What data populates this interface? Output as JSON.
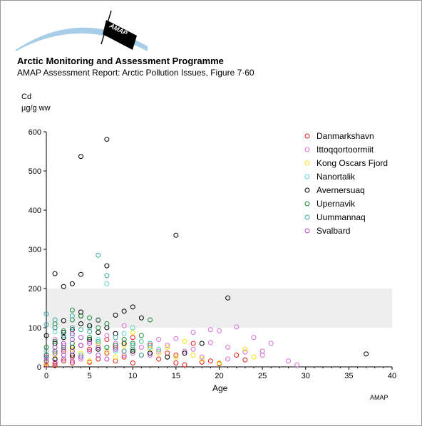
{
  "header": {
    "title": "Arctic Monitoring and Assessment Programme",
    "subtitle": "AMAP Assessment Report: Arctic Pollution Issues, Figure 7·60",
    "logo_text": "AMAP"
  },
  "credit": "AMAP",
  "chart_data": {
    "type": "scatter",
    "title": "",
    "ylabel_line1": "Cd",
    "ylabel_line2": "µg/g ww",
    "xlabel": "Age",
    "xlim": [
      0,
      40
    ],
    "ylim": [
      0,
      600
    ],
    "xticks": [
      "0",
      "5",
      "10",
      "15",
      "20",
      "25",
      "30",
      "35",
      "40"
    ],
    "yticks": [
      "0",
      "100",
      "200",
      "300",
      "400",
      "500",
      "600"
    ],
    "grid": false,
    "legend_position": "top-right",
    "band": {
      "y_from": 100,
      "y_to": 200,
      "color": "#eeeeee"
    },
    "series": [
      {
        "name": "Danmarkshavn",
        "color": "#e8201e",
        "points": [
          [
            0,
            5
          ],
          [
            0,
            12
          ],
          [
            1,
            3
          ],
          [
            1,
            8
          ],
          [
            1,
            20
          ],
          [
            2,
            15
          ],
          [
            2,
            40
          ],
          [
            3,
            10
          ],
          [
            3,
            25
          ],
          [
            4,
            30
          ],
          [
            4,
            55
          ],
          [
            5,
            12
          ],
          [
            5,
            45
          ],
          [
            6,
            20
          ],
          [
            6,
            60
          ],
          [
            7,
            35
          ],
          [
            7,
            70
          ],
          [
            8,
            15
          ],
          [
            8,
            50
          ],
          [
            9,
            40
          ],
          [
            9,
            25
          ],
          [
            10,
            10
          ],
          [
            10,
            75
          ],
          [
            11,
            30
          ],
          [
            12,
            55
          ],
          [
            13,
            20
          ],
          [
            14,
            35
          ],
          [
            15,
            10
          ],
          [
            15,
            30
          ],
          [
            16,
            5
          ],
          [
            17,
            60
          ],
          [
            18,
            12
          ],
          [
            19,
            15
          ],
          [
            20,
            8
          ],
          [
            22,
            30
          ],
          [
            23,
            18
          ]
        ]
      },
      {
        "name": "Ittoqqortoormiit",
        "color": "#d86fd8",
        "points": [
          [
            0,
            30
          ],
          [
            1,
            70
          ],
          [
            2,
            55
          ],
          [
            3,
            40
          ],
          [
            4,
            20
          ],
          [
            5,
            65
          ],
          [
            6,
            118
          ],
          [
            7,
            80
          ],
          [
            8,
            60
          ],
          [
            9,
            105
          ],
          [
            10,
            35
          ],
          [
            11,
            50
          ],
          [
            12,
            30
          ],
          [
            13,
            70
          ],
          [
            14,
            55
          ],
          [
            15,
            72
          ],
          [
            16,
            40
          ],
          [
            17,
            88
          ],
          [
            18,
            25
          ],
          [
            19,
            62
          ],
          [
            19,
            95
          ],
          [
            20,
            92
          ],
          [
            21,
            50
          ],
          [
            22,
            102
          ],
          [
            23,
            38
          ],
          [
            24,
            75
          ],
          [
            25,
            30
          ],
          [
            25,
            40
          ],
          [
            26,
            60
          ],
          [
            28,
            15
          ],
          [
            29,
            5
          ],
          [
            9,
            30
          ],
          [
            13,
            40
          ],
          [
            17,
            45
          ],
          [
            21,
            20
          ]
        ]
      },
      {
        "name": "Kong Oscars Fjord",
        "color": "#f2e318",
        "points": [
          [
            0,
            10
          ],
          [
            1,
            30
          ],
          [
            2,
            20
          ],
          [
            3,
            45
          ],
          [
            4,
            35
          ],
          [
            5,
            15
          ],
          [
            6,
            60
          ],
          [
            7,
            40
          ],
          [
            8,
            25
          ],
          [
            9,
            55
          ],
          [
            10,
            88
          ],
          [
            11,
            65
          ],
          [
            12,
            45
          ],
          [
            13,
            35
          ],
          [
            14,
            50
          ],
          [
            15,
            25
          ],
          [
            16,
            65
          ],
          [
            17,
            30
          ],
          [
            18,
            20
          ],
          [
            20,
            10
          ],
          [
            23,
            45
          ],
          [
            24,
            25
          ]
        ]
      },
      {
        "name": "Nanortalik",
        "color": "#5fd3c8",
        "points": [
          [
            0,
            20
          ],
          [
            0,
            40
          ],
          [
            1,
            50
          ],
          [
            1,
            90
          ],
          [
            2,
            60
          ],
          [
            3,
            80
          ],
          [
            4,
            30
          ],
          [
            5,
            100
          ],
          [
            6,
            70
          ],
          [
            7,
            212
          ],
          [
            7,
            50
          ],
          [
            8,
            40
          ],
          [
            9,
            85
          ],
          [
            10,
            100
          ],
          [
            11,
            65
          ],
          [
            12,
            50
          ],
          [
            13,
            45
          ]
        ]
      },
      {
        "name": "Avernersuaq",
        "color": "#000000",
        "points": [
          [
            1,
            238
          ],
          [
            2,
            205
          ],
          [
            3,
            212
          ],
          [
            4,
            236
          ],
          [
            4,
            537
          ],
          [
            7,
            581
          ],
          [
            7,
            258
          ],
          [
            15,
            336
          ],
          [
            21,
            176
          ],
          [
            8,
            132
          ],
          [
            9,
            142
          ],
          [
            10,
            153
          ],
          [
            11,
            125
          ],
          [
            4,
            140
          ],
          [
            4,
            130
          ],
          [
            5,
            105
          ],
          [
            6,
            88
          ],
          [
            0,
            80
          ],
          [
            1,
            100
          ],
          [
            1,
            60
          ],
          [
            2,
            75
          ],
          [
            2,
            118
          ],
          [
            3,
            95
          ],
          [
            3,
            50
          ],
          [
            4,
            110
          ],
          [
            5,
            70
          ],
          [
            6,
            45
          ],
          [
            7,
            100
          ],
          [
            8,
            85
          ],
          [
            9,
            60
          ],
          [
            10,
            40
          ],
          [
            12,
            35
          ],
          [
            14,
            25
          ],
          [
            16,
            35
          ],
          [
            18,
            60
          ],
          [
            37,
            33
          ],
          [
            2,
            88
          ],
          [
            3,
            30
          ],
          [
            1,
            20
          ]
        ]
      },
      {
        "name": "Upernavik",
        "color": "#1b8a3a",
        "points": [
          [
            0,
            30
          ],
          [
            0,
            50
          ],
          [
            1,
            65
          ],
          [
            1,
            110
          ],
          [
            2,
            92
          ],
          [
            3,
            145
          ],
          [
            3,
            120
          ],
          [
            4,
            130
          ],
          [
            5,
            125
          ],
          [
            5,
            75
          ],
          [
            6,
            100
          ],
          [
            6,
            120
          ],
          [
            7,
            110
          ],
          [
            7,
            50
          ],
          [
            8,
            55
          ],
          [
            9,
            70
          ],
          [
            10,
            45
          ],
          [
            10,
            60
          ],
          [
            11,
            80
          ],
          [
            12,
            120
          ],
          [
            3,
            60
          ],
          [
            2,
            50
          ],
          [
            1,
            40
          ]
        ]
      },
      {
        "name": "Uummannaq",
        "color": "#3aaea4",
        "points": [
          [
            0,
            135
          ],
          [
            0,
            108
          ],
          [
            1,
            120
          ],
          [
            1,
            100
          ],
          [
            2,
            80
          ],
          [
            3,
            130
          ],
          [
            3,
            100
          ],
          [
            4,
            95
          ],
          [
            6,
            285
          ],
          [
            7,
            233
          ],
          [
            5,
            90
          ],
          [
            6,
            65
          ],
          [
            8,
            75
          ],
          [
            9,
            40
          ],
          [
            10,
            55
          ],
          [
            11,
            30
          ],
          [
            12,
            60
          ]
        ]
      },
      {
        "name": "Svalbard",
        "color": "#b24cc8",
        "points": [
          [
            0,
            15
          ],
          [
            0,
            25
          ],
          [
            1,
            35
          ],
          [
            1,
            50
          ],
          [
            1,
            12
          ],
          [
            2,
            45
          ],
          [
            2,
            60
          ],
          [
            2,
            30
          ],
          [
            3,
            40
          ],
          [
            3,
            70
          ],
          [
            3,
            85
          ],
          [
            4,
            55
          ],
          [
            4,
            75
          ],
          [
            4,
            25
          ],
          [
            5,
            40
          ],
          [
            5,
            60
          ],
          [
            6,
            30
          ],
          [
            6,
            50
          ],
          [
            7,
            20
          ],
          [
            8,
            45
          ],
          [
            2,
            20
          ],
          [
            3,
            15
          ]
        ]
      }
    ]
  }
}
